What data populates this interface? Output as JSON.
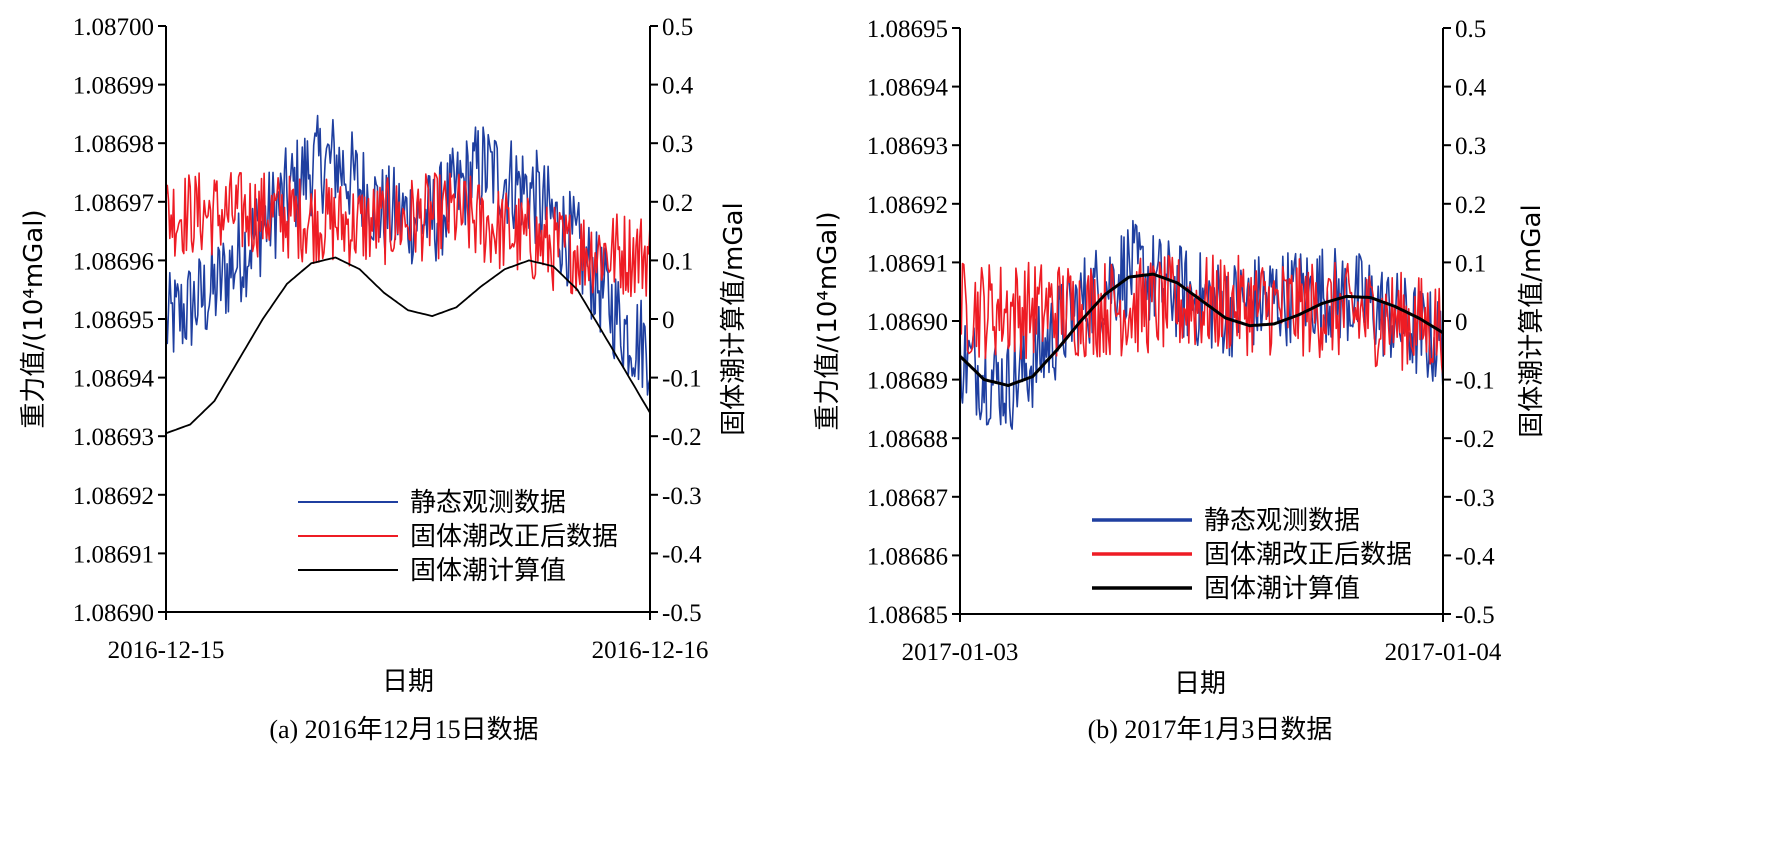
{
  "colors": {
    "static": "#1f3fa0",
    "corrected": "#ee1c24",
    "tide": "#000000"
  },
  "chart_data": [
    {
      "type": "line",
      "caption": "(a) 2016年12月15日数据",
      "xlabel": "日期",
      "ylabel": "重力值/(10⁴mGal)",
      "y2label": "固体潮计算值/mGal",
      "x_ticks": [
        "2016-12-15",
        "2016-12-16"
      ],
      "xlim": [
        "2016-12-15",
        "2016-12-16"
      ],
      "ylim": [
        1.0869,
        1.087
      ],
      "y_ticks": [
        "1.08690",
        "1.08691",
        "1.08692",
        "1.08693",
        "1.08694",
        "1.08695",
        "1.08696",
        "1.08697",
        "1.08698",
        "1.08699",
        "1.08700"
      ],
      "y2lim": [
        -0.5,
        0.5
      ],
      "y2_ticks": [
        "-0.5",
        "-0.4",
        "-0.3",
        "-0.2",
        "-0.1",
        "0",
        "0.1",
        "0.2",
        "0.3",
        "0.4",
        "0.5"
      ],
      "legend_position": "bottom-right",
      "legend": [
        "静态观测数据",
        "固体潮改正后数据",
        "固体潮计算值"
      ],
      "series": [
        {
          "name": "静态观测数据",
          "axis": "left",
          "noise": 8.5e-06,
          "x": [
            0,
            0.1,
            0.2,
            0.3,
            0.35,
            0.45,
            0.55,
            0.65,
            0.75,
            0.85,
            0.95,
            1.0
          ],
          "y": [
            1.086949,
            1.086955,
            1.086966,
            1.086976,
            1.086977,
            1.086968,
            1.086967,
            1.086976,
            1.086972,
            1.086962,
            1.086948,
            1.086945
          ]
        },
        {
          "name": "固体潮改正后数据",
          "axis": "left",
          "noise": 7.5e-06,
          "x": [
            0,
            0.2,
            0.4,
            0.6,
            0.8,
            1.0
          ],
          "y": [
            1.086968,
            1.086968,
            1.086966,
            1.086968,
            1.086962,
            1.086961
          ]
        },
        {
          "name": "固体潮计算值",
          "axis": "right",
          "x": [
            0,
            0.05,
            0.1,
            0.15,
            0.2,
            0.25,
            0.3,
            0.35,
            0.4,
            0.45,
            0.5,
            0.55,
            0.6,
            0.65,
            0.7,
            0.75,
            0.8,
            0.85,
            0.9,
            0.95,
            1.0
          ],
          "y": [
            -0.195,
            -0.18,
            -0.14,
            -0.07,
            0.0,
            0.06,
            0.095,
            0.105,
            0.085,
            0.045,
            0.015,
            0.005,
            0.02,
            0.055,
            0.085,
            0.1,
            0.09,
            0.05,
            -0.02,
            -0.09,
            -0.16
          ]
        }
      ]
    },
    {
      "type": "line",
      "caption": "(b) 2017年1月3日数据",
      "xlabel": "日期",
      "ylabel": "重力值/(10⁴mGal)",
      "y2label": "固体潮计算值/mGal",
      "x_ticks": [
        "2017-01-03",
        "2017-01-04"
      ],
      "xlim": [
        "2017-01-03",
        "2017-01-04"
      ],
      "ylim": [
        1.08685,
        1.08695
      ],
      "y_ticks": [
        "1.08685",
        "1.08686",
        "1.08687",
        "1.08688",
        "1.08689",
        "1.08690",
        "1.08691",
        "1.08692",
        "1.08693",
        "1.08694",
        "1.08695"
      ],
      "y2lim": [
        -0.5,
        0.5
      ],
      "y2_ticks": [
        "-0.5",
        "-0.4",
        "-0.3",
        "-0.2",
        "-0.1",
        "0",
        "0.1",
        "0.2",
        "0.3",
        "0.4",
        "0.5"
      ],
      "legend_position": "bottom-right",
      "legend": [
        "静态观测数据",
        "固体潮改正后数据",
        "固体潮计算值"
      ],
      "series": [
        {
          "name": "静态观测数据",
          "axis": "left",
          "noise": 8.5e-06,
          "x": [
            0,
            0.05,
            0.1,
            0.15,
            0.25,
            0.35,
            0.45,
            0.55,
            0.65,
            0.75,
            0.85,
            0.95,
            1.0
          ],
          "y": [
            1.086894,
            1.086891,
            1.086889,
            1.086893,
            1.086903,
            1.086909,
            1.086905,
            1.086902,
            1.086904,
            1.086905,
            1.086903,
            1.086898,
            1.086896
          ]
        },
        {
          "name": "固体潮改正后数据",
          "axis": "left",
          "noise": 8.5e-06,
          "x": [
            0,
            0.25,
            0.5,
            0.75,
            1.0
          ],
          "y": [
            1.086902,
            1.086902,
            1.086903,
            1.086902,
            1.086899
          ]
        },
        {
          "name": "固体潮计算值",
          "axis": "right",
          "x": [
            0,
            0.05,
            0.1,
            0.15,
            0.2,
            0.25,
            0.3,
            0.35,
            0.4,
            0.45,
            0.5,
            0.55,
            0.6,
            0.65,
            0.7,
            0.75,
            0.8,
            0.85,
            0.9,
            0.95,
            1.0
          ],
          "y": [
            -0.06,
            -0.1,
            -0.11,
            -0.095,
            -0.05,
            0.0,
            0.045,
            0.075,
            0.08,
            0.065,
            0.035,
            0.005,
            -0.008,
            -0.005,
            0.01,
            0.03,
            0.042,
            0.04,
            0.025,
            0.005,
            -0.02
          ]
        }
      ]
    }
  ]
}
